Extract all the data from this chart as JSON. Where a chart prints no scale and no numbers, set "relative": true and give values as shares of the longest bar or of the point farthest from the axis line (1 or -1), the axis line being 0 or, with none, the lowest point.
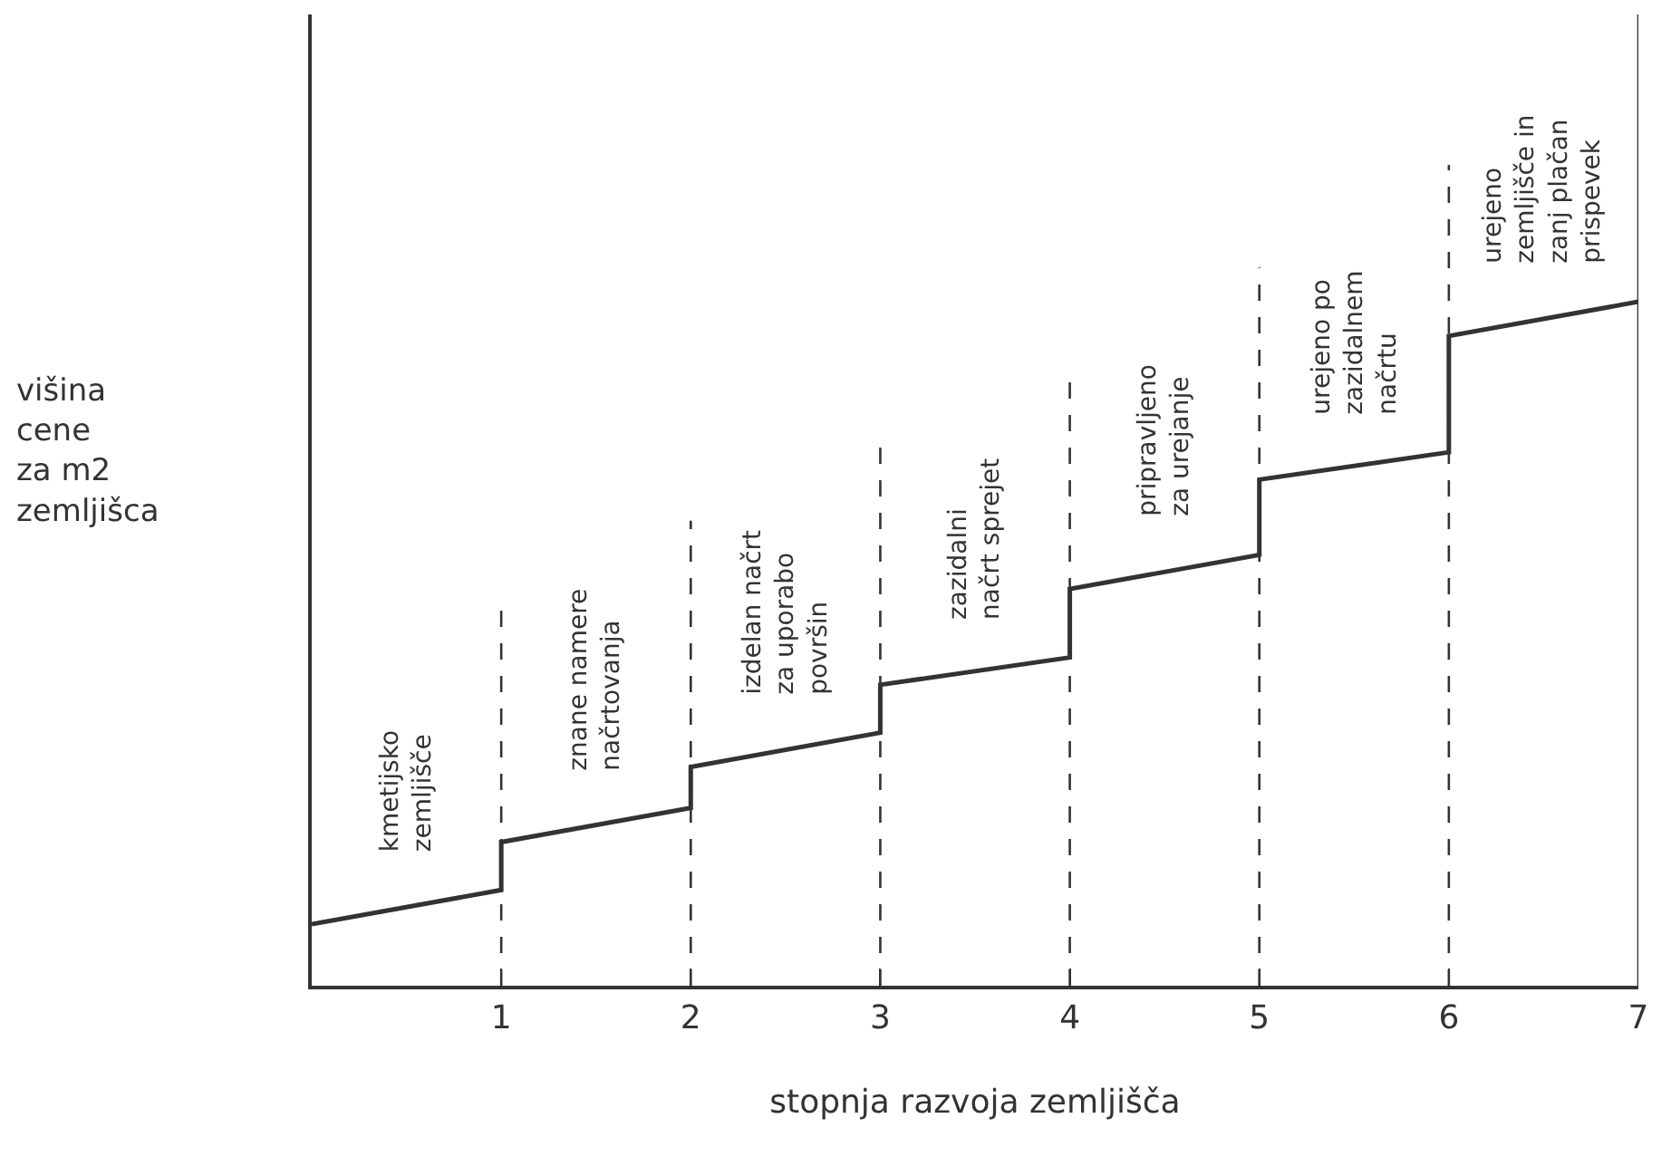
{
  "chart_data": {
    "type": "line",
    "relative": true,
    "xlabel": "stopnja razvoja zemljišča",
    "ylabel": "višina\ncene\nza m2\nzemljišca",
    "x": [
      0,
      1,
      1,
      2,
      2,
      3,
      3,
      4,
      4,
      5,
      5,
      6,
      6,
      7
    ],
    "series": [
      {
        "color": "#333333",
        "values": [
          0.09,
          0.14,
          0.21,
          0.26,
          0.32,
          0.37,
          0.44,
          0.48,
          0.58,
          0.63,
          0.74,
          0.78,
          0.95,
          1.0
        ]
      }
    ],
    "xlim": [
      0,
      7
    ],
    "xticks": [
      1,
      2,
      3,
      4,
      5,
      6,
      7
    ],
    "marker": "none",
    "line_style": "solid",
    "ref_lines": [
      {
        "axis": "x",
        "value": 1,
        "label": "kmetijsko\nzemljišče",
        "line_style": "dashed"
      },
      {
        "axis": "x",
        "value": 2,
        "label": "znane namere\nnačrtovanja",
        "line_style": "dashed"
      },
      {
        "axis": "x",
        "value": 3,
        "label": "izdelan načrt\nza uporabo\npovršin",
        "line_style": "dashed"
      },
      {
        "axis": "x",
        "value": 4,
        "label": "zazidalni\nnačrt sprejet",
        "line_style": "dashed"
      },
      {
        "axis": "x",
        "value": 5,
        "label": "pripravljeno\nza urejanje",
        "line_style": "dashed"
      },
      {
        "axis": "x",
        "value": 6,
        "label": "urejeno po\nzazidalnem\nnačrtu",
        "line_style": "dashed"
      },
      {
        "axis": "x",
        "value": 7,
        "label": "urejeno\nzemljišče in\nzanj plačan\nprispevek",
        "line_style": "solid"
      }
    ]
  }
}
